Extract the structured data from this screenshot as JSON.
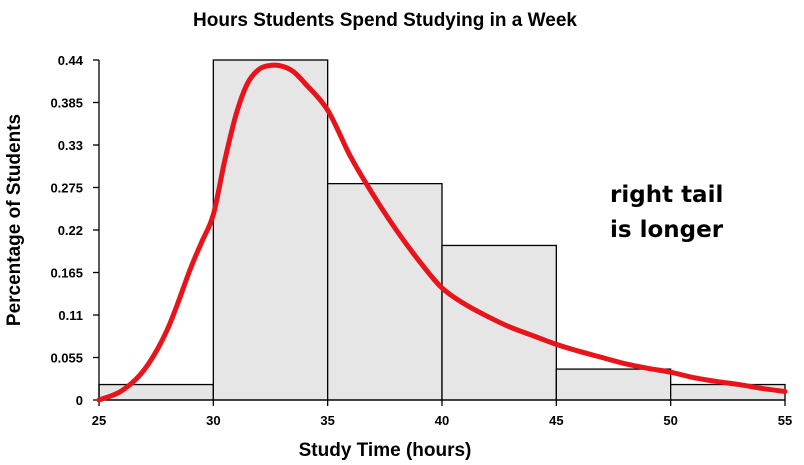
{
  "chart_data": {
    "type": "bar",
    "title": "Hours Students Spend Studying in a Week",
    "xlabel": "Study Time (hours)",
    "ylabel": "Percentage of Students",
    "xlim": [
      25,
      55
    ],
    "ylim": [
      0,
      0.44
    ],
    "x_ticks": [
      "25",
      "30",
      "35",
      "40",
      "45",
      "50",
      "55"
    ],
    "y_ticks": [
      "0",
      "0.055",
      "0.11",
      "0.165",
      "0.22",
      "0.275",
      "0.33",
      "0.385",
      "0.44"
    ],
    "bins": [
      {
        "start": 25,
        "end": 30,
        "value": 0.02
      },
      {
        "start": 30,
        "end": 35,
        "value": 0.44
      },
      {
        "start": 35,
        "end": 40,
        "value": 0.28
      },
      {
        "start": 40,
        "end": 45,
        "value": 0.2
      },
      {
        "start": 45,
        "end": 50,
        "value": 0.04
      },
      {
        "start": 50,
        "end": 55,
        "value": 0.02
      }
    ],
    "density_curve": {
      "x": [
        25,
        26,
        27,
        28,
        29,
        29.5,
        30,
        30.5,
        31,
        31.5,
        32,
        32.5,
        33,
        33.5,
        34,
        35,
        36,
        37,
        38,
        39,
        40,
        41,
        42,
        43,
        44,
        45,
        46,
        47,
        48,
        49,
        50,
        51,
        52,
        53,
        54,
        55
      ],
      "y": [
        0.0,
        0.012,
        0.04,
        0.092,
        0.17,
        0.205,
        0.24,
        0.31,
        0.37,
        0.41,
        0.428,
        0.433,
        0.432,
        0.425,
        0.41,
        0.375,
        0.315,
        0.265,
        0.22,
        0.18,
        0.145,
        0.124,
        0.108,
        0.094,
        0.083,
        0.072,
        0.063,
        0.055,
        0.047,
        0.041,
        0.036,
        0.029,
        0.024,
        0.02,
        0.015,
        0.011
      ],
      "color": "#e8141b"
    },
    "annotation": [
      "right tail",
      "is longer"
    ],
    "grid": false
  }
}
